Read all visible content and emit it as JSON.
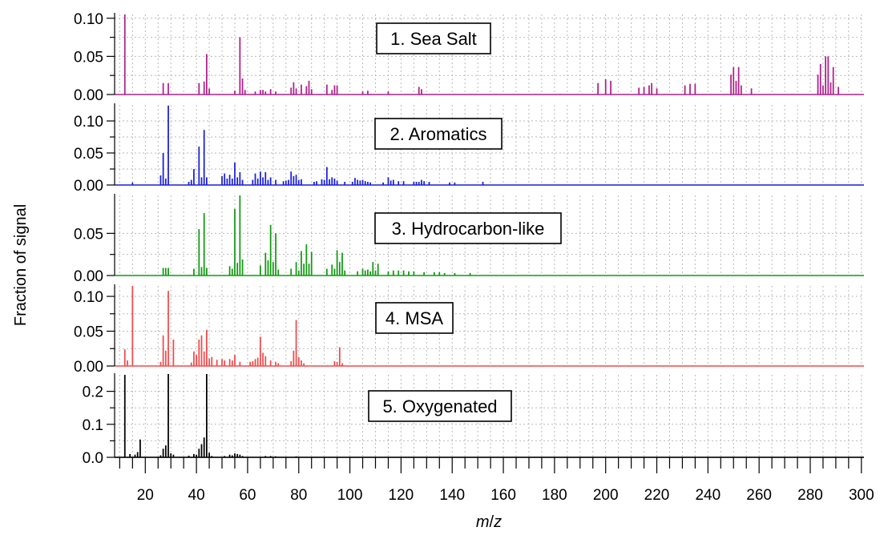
{
  "ylabel": "Fraction of signal",
  "xlabel_italic_1": "m",
  "xlabel_sep": "/",
  "xlabel_italic_2": "z",
  "chart_data": {
    "type": "bar",
    "subtype": "stacked-panels-mass-spectra",
    "xlim": [
      8,
      301
    ],
    "xticks": [
      20,
      40,
      60,
      80,
      100,
      120,
      140,
      160,
      180,
      200,
      220,
      240,
      260,
      280,
      300
    ],
    "grid": true,
    "panels": [
      {
        "name": "1. Sea Salt",
        "color": "#b0208a",
        "ylim": [
          0,
          0.105
        ],
        "yticks": [
          0.0,
          0.05,
          0.1
        ],
        "ytick_labels": [
          "0.00",
          "0.05",
          "0.10"
        ],
        "x": [
          12,
          27,
          29,
          41,
          43,
          44,
          45,
          55,
          57,
          58,
          59,
          63,
          65,
          66,
          67,
          69,
          71,
          77,
          78,
          79,
          81,
          83,
          84,
          85,
          91,
          93,
          94,
          95,
          105,
          107,
          115,
          127,
          128,
          197,
          200,
          202,
          213,
          215,
          217,
          218,
          220,
          231,
          233,
          235,
          249,
          250,
          251,
          252,
          253,
          257,
          283,
          284,
          285,
          286,
          287,
          288,
          289,
          291
        ],
        "values": [
          0.105,
          0.015,
          0.015,
          0.015,
          0.017,
          0.053,
          0.008,
          0.005,
          0.075,
          0.021,
          0.006,
          0.004,
          0.006,
          0.006,
          0.004,
          0.007,
          0.004,
          0.009,
          0.016,
          0.008,
          0.013,
          0.011,
          0.018,
          0.007,
          0.013,
          0.006,
          0.012,
          0.012,
          0.004,
          0.005,
          0.004,
          0.01,
          0.007,
          0.015,
          0.02,
          0.018,
          0.009,
          0.01,
          0.012,
          0.015,
          0.008,
          0.012,
          0.014,
          0.014,
          0.026,
          0.036,
          0.018,
          0.036,
          0.012,
          0.008,
          0.026,
          0.04,
          0.012,
          0.05,
          0.05,
          0.016,
          0.036,
          0.01
        ]
      },
      {
        "name": "2. Aromatics",
        "color": "#1a1fd6",
        "ylim": [
          0,
          0.125
        ],
        "yticks": [
          0.0,
          0.05,
          0.1
        ],
        "ytick_labels": [
          "0.00",
          "0.05",
          "0.10"
        ],
        "x": [
          15,
          26,
          27,
          28,
          29,
          37,
          38,
          39,
          41,
          42,
          43,
          44,
          50,
          51,
          52,
          53,
          54,
          55,
          56,
          57,
          58,
          62,
          63,
          64,
          65,
          66,
          67,
          68,
          69,
          71,
          74,
          75,
          76,
          77,
          78,
          79,
          80,
          81,
          86,
          87,
          89,
          90,
          91,
          92,
          93,
          94,
          95,
          98,
          101,
          102,
          103,
          104,
          105,
          106,
          107,
          108,
          113,
          115,
          116,
          117,
          119,
          121,
          125,
          126,
          127,
          128,
          129,
          131,
          139,
          141,
          152
        ],
        "values": [
          0.004,
          0.015,
          0.05,
          0.01,
          0.124,
          0.005,
          0.008,
          0.025,
          0.06,
          0.012,
          0.086,
          0.012,
          0.014,
          0.018,
          0.01,
          0.016,
          0.01,
          0.035,
          0.012,
          0.02,
          0.008,
          0.008,
          0.018,
          0.01,
          0.021,
          0.012,
          0.02,
          0.008,
          0.012,
          0.008,
          0.006,
          0.007,
          0.008,
          0.021,
          0.014,
          0.016,
          0.008,
          0.009,
          0.005,
          0.006,
          0.009,
          0.008,
          0.028,
          0.009,
          0.012,
          0.01,
          0.007,
          0.005,
          0.005,
          0.011,
          0.008,
          0.007,
          0.008,
          0.006,
          0.005,
          0.004,
          0.004,
          0.012,
          0.007,
          0.008,
          0.006,
          0.006,
          0.005,
          0.005,
          0.005,
          0.008,
          0.006,
          0.005,
          0.004,
          0.004,
          0.005
        ]
      },
      {
        "name": "3. Hydrocarbon-like",
        "color": "#119a11",
        "ylim": [
          0,
          0.095
        ],
        "yticks": [
          0.0,
          0.05
        ],
        "ytick_labels": [
          "0.00",
          "0.05"
        ],
        "x": [
          27,
          28,
          29,
          39,
          41,
          42,
          43,
          44,
          53,
          54,
          55,
          56,
          57,
          58,
          65,
          67,
          68,
          69,
          70,
          71,
          72,
          77,
          79,
          80,
          81,
          82,
          83,
          84,
          85,
          91,
          93,
          94,
          95,
          96,
          97,
          98,
          103,
          105,
          106,
          107,
          108,
          109,
          110,
          111,
          115,
          117,
          119,
          121,
          123,
          125,
          129,
          133,
          135,
          137,
          141,
          147
        ],
        "values": [
          0.009,
          0.009,
          0.009,
          0.008,
          0.055,
          0.01,
          0.074,
          0.009,
          0.011,
          0.008,
          0.079,
          0.015,
          0.095,
          0.019,
          0.012,
          0.027,
          0.018,
          0.06,
          0.016,
          0.05,
          0.007,
          0.008,
          0.016,
          0.006,
          0.029,
          0.014,
          0.037,
          0.014,
          0.028,
          0.008,
          0.013,
          0.008,
          0.03,
          0.016,
          0.027,
          0.006,
          0.005,
          0.008,
          0.006,
          0.007,
          0.005,
          0.016,
          0.006,
          0.014,
          0.005,
          0.006,
          0.006,
          0.006,
          0.005,
          0.005,
          0.004,
          0.004,
          0.004,
          0.003,
          0.003,
          0.003
        ]
      },
      {
        "name": "4. MSA",
        "color": "#f04a4a",
        "ylim": [
          0,
          0.115
        ],
        "yticks": [
          0.0,
          0.05,
          0.1
        ],
        "ytick_labels": [
          "0.00",
          "0.05",
          "0.10"
        ],
        "x": [
          12,
          13,
          15,
          26,
          27,
          28,
          29,
          31,
          38,
          39,
          40,
          41,
          42,
          43,
          44,
          45,
          46,
          48,
          50,
          51,
          53,
          54,
          55,
          57,
          61,
          62,
          63,
          64,
          65,
          66,
          67,
          69,
          71,
          72,
          77,
          78,
          79,
          80,
          81,
          82,
          94,
          95,
          96,
          97
        ],
        "values": [
          0.024,
          0.008,
          0.115,
          0.006,
          0.044,
          0.022,
          0.108,
          0.038,
          0.005,
          0.021,
          0.016,
          0.038,
          0.044,
          0.021,
          0.052,
          0.011,
          0.013,
          0.009,
          0.01,
          0.008,
          0.01,
          0.008,
          0.016,
          0.006,
          0.006,
          0.007,
          0.01,
          0.012,
          0.042,
          0.019,
          0.014,
          0.008,
          0.006,
          0.004,
          0.007,
          0.022,
          0.066,
          0.013,
          0.008,
          0.004,
          0.007,
          0.006,
          0.027,
          0.004
        ]
      },
      {
        "name": "5. Oxygenated",
        "color": "#000000",
        "ylim": [
          0,
          0.25
        ],
        "yticks": [
          0.0,
          0.1,
          0.2
        ],
        "ytick_labels": [
          "0.0",
          "0.1",
          "0.2"
        ],
        "x": [
          12,
          14,
          16,
          17,
          18,
          26,
          27,
          28,
          29,
          30,
          31,
          37,
          39,
          40,
          41,
          42,
          43,
          44,
          45,
          46,
          51,
          53,
          54,
          55,
          56,
          57,
          58,
          67,
          69,
          71,
          79
        ],
        "values": [
          0.25,
          0.01,
          0.008,
          0.016,
          0.054,
          0.006,
          0.026,
          0.036,
          0.255,
          0.012,
          0.008,
          0.005,
          0.01,
          0.008,
          0.026,
          0.04,
          0.06,
          0.255,
          0.014,
          0.004,
          0.004,
          0.008,
          0.006,
          0.012,
          0.01,
          0.008,
          0.004,
          0.004,
          0.004,
          0.003,
          0.003
        ]
      }
    ]
  }
}
